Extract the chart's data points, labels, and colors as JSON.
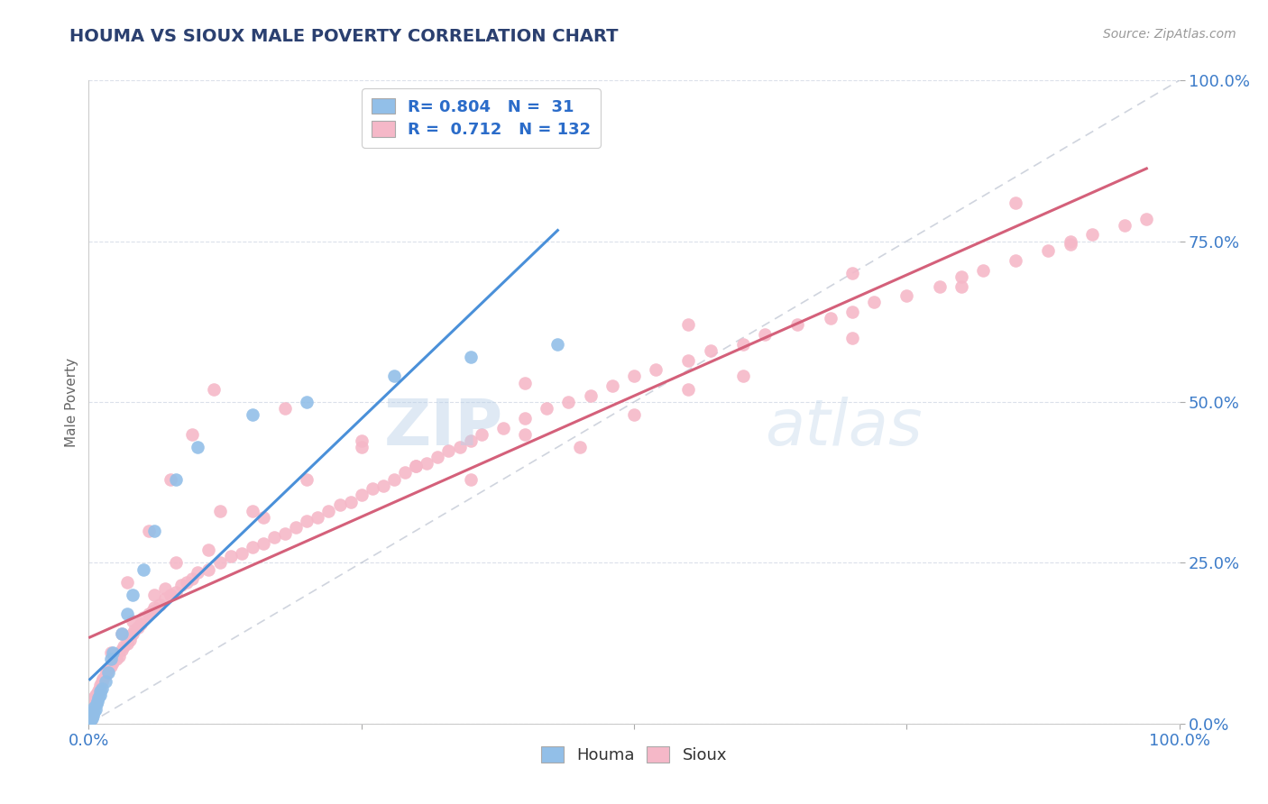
{
  "title": "HOUMA VS SIOUX MALE POVERTY CORRELATION CHART",
  "source": "Source: ZipAtlas.com",
  "ylabel": "Male Poverty",
  "ytick_labels": [
    "100.0%",
    "75.0%",
    "50.0%",
    "25.0%",
    "0.0%"
  ],
  "ytick_values": [
    1.0,
    0.75,
    0.5,
    0.25,
    0.0
  ],
  "houma_R": 0.804,
  "houma_N": 31,
  "sioux_R": 0.712,
  "sioux_N": 132,
  "houma_color": "#92bfe8",
  "sioux_color": "#f5b8c8",
  "houma_line_color": "#4a90d9",
  "sioux_line_color": "#d4607a",
  "ref_line_color": "#b0b8c8",
  "title_color": "#2b4070",
  "axis_label_color": "#3d7cc9",
  "legend_R_color": "#2b6cc9",
  "background_color": "#ffffff",
  "watermark_text": "ZIP",
  "watermark_text2": "atlas",
  "grid_color": "#d8dde8",
  "houma_x": [
    0.001,
    0.002,
    0.003,
    0.003,
    0.004,
    0.004,
    0.005,
    0.005,
    0.006,
    0.007,
    0.008,
    0.009,
    0.01,
    0.01,
    0.012,
    0.015,
    0.018,
    0.02,
    0.022,
    0.03,
    0.035,
    0.04,
    0.05,
    0.06,
    0.08,
    0.1,
    0.15,
    0.2,
    0.28,
    0.35,
    0.43
  ],
  "houma_y": [
    0.005,
    0.01,
    0.008,
    0.015,
    0.012,
    0.02,
    0.018,
    0.025,
    0.022,
    0.03,
    0.035,
    0.04,
    0.045,
    0.05,
    0.055,
    0.065,
    0.08,
    0.1,
    0.11,
    0.14,
    0.17,
    0.2,
    0.24,
    0.3,
    0.38,
    0.43,
    0.48,
    0.5,
    0.54,
    0.57,
    0.59
  ],
  "sioux_x": [
    0.001,
    0.002,
    0.002,
    0.003,
    0.003,
    0.004,
    0.004,
    0.005,
    0.005,
    0.006,
    0.006,
    0.007,
    0.008,
    0.009,
    0.01,
    0.01,
    0.012,
    0.013,
    0.015,
    0.016,
    0.018,
    0.02,
    0.022,
    0.025,
    0.028,
    0.03,
    0.032,
    0.035,
    0.038,
    0.04,
    0.042,
    0.045,
    0.048,
    0.05,
    0.055,
    0.058,
    0.06,
    0.065,
    0.07,
    0.075,
    0.08,
    0.085,
    0.09,
    0.095,
    0.1,
    0.11,
    0.12,
    0.13,
    0.14,
    0.15,
    0.16,
    0.17,
    0.18,
    0.19,
    0.2,
    0.21,
    0.22,
    0.23,
    0.24,
    0.25,
    0.26,
    0.27,
    0.28,
    0.29,
    0.3,
    0.31,
    0.32,
    0.33,
    0.34,
    0.35,
    0.36,
    0.38,
    0.4,
    0.42,
    0.44,
    0.46,
    0.48,
    0.5,
    0.52,
    0.55,
    0.57,
    0.6,
    0.62,
    0.65,
    0.68,
    0.7,
    0.72,
    0.75,
    0.78,
    0.8,
    0.82,
    0.85,
    0.88,
    0.9,
    0.92,
    0.95,
    0.97,
    0.02,
    0.035,
    0.055,
    0.075,
    0.095,
    0.115,
    0.18,
    0.25,
    0.35,
    0.45,
    0.55,
    0.04,
    0.08,
    0.12,
    0.2,
    0.3,
    0.4,
    0.5,
    0.6,
    0.7,
    0.8,
    0.9,
    0.06,
    0.15,
    0.25,
    0.4,
    0.55,
    0.7,
    0.85,
    0.03,
    0.07,
    0.11,
    0.16
  ],
  "sioux_y": [
    0.003,
    0.008,
    0.015,
    0.012,
    0.025,
    0.02,
    0.035,
    0.028,
    0.04,
    0.03,
    0.045,
    0.038,
    0.048,
    0.052,
    0.055,
    0.06,
    0.065,
    0.07,
    0.075,
    0.08,
    0.085,
    0.09,
    0.095,
    0.1,
    0.105,
    0.115,
    0.12,
    0.125,
    0.13,
    0.14,
    0.145,
    0.15,
    0.155,
    0.165,
    0.17,
    0.175,
    0.18,
    0.185,
    0.195,
    0.2,
    0.205,
    0.215,
    0.22,
    0.225,
    0.235,
    0.24,
    0.25,
    0.26,
    0.265,
    0.275,
    0.28,
    0.29,
    0.295,
    0.305,
    0.315,
    0.32,
    0.33,
    0.34,
    0.345,
    0.355,
    0.365,
    0.37,
    0.38,
    0.39,
    0.4,
    0.405,
    0.415,
    0.425,
    0.43,
    0.44,
    0.45,
    0.46,
    0.475,
    0.49,
    0.5,
    0.51,
    0.525,
    0.54,
    0.55,
    0.565,
    0.58,
    0.59,
    0.605,
    0.62,
    0.63,
    0.64,
    0.655,
    0.665,
    0.68,
    0.695,
    0.705,
    0.72,
    0.735,
    0.745,
    0.76,
    0.775,
    0.785,
    0.11,
    0.22,
    0.3,
    0.38,
    0.45,
    0.52,
    0.49,
    0.44,
    0.38,
    0.43,
    0.52,
    0.16,
    0.25,
    0.33,
    0.38,
    0.4,
    0.45,
    0.48,
    0.54,
    0.6,
    0.68,
    0.75,
    0.2,
    0.33,
    0.43,
    0.53,
    0.62,
    0.7,
    0.81,
    0.14,
    0.21,
    0.27,
    0.32
  ]
}
